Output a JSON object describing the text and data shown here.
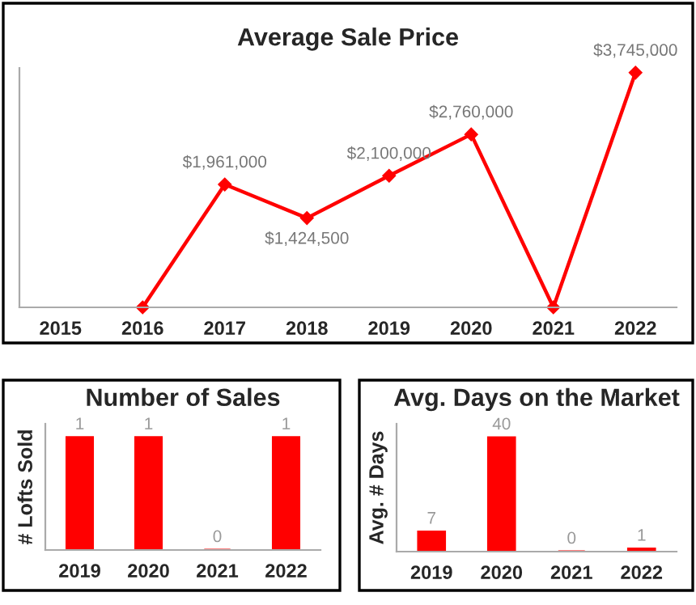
{
  "chart_data": [
    {
      "type": "line",
      "title": "Average Sale Price",
      "categories": [
        "2015",
        "2016",
        "2017",
        "2018",
        "2019",
        "2020",
        "2021",
        "2022"
      ],
      "series": [
        {
          "color": "#ff0000",
          "values": [
            null,
            0,
            1961000,
            1424500,
            2100000,
            2760000,
            0,
            3745000
          ],
          "value_labels": [
            null,
            null,
            "$1,961,000",
            "$1,424,500",
            "$2,100,000",
            "$2,760,000",
            null,
            "$3,745,000"
          ]
        }
      ],
      "marker": "diamond",
      "line_style": "solid",
      "grid": false,
      "legend": false,
      "tick_labels": "x"
    },
    {
      "type": "bar",
      "title": "Number of Sales",
      "ylabel": "# Lofts Sold",
      "categories": [
        "2019",
        "2020",
        "2021",
        "2022"
      ],
      "values": [
        1,
        1,
        0,
        1
      ],
      "color": "#ff0000",
      "data_labels": true,
      "grid": false,
      "legend": false,
      "tick_labels": "x"
    },
    {
      "type": "bar",
      "title": "Avg. Days on the Market",
      "ylabel": "Avg. # Days",
      "categories": [
        "2019",
        "2020",
        "2021",
        "2022"
      ],
      "values": [
        7,
        40,
        0,
        1
      ],
      "color": "#ff0000",
      "data_labels": true,
      "grid": false,
      "legend": false,
      "tick_labels": "x"
    }
  ]
}
